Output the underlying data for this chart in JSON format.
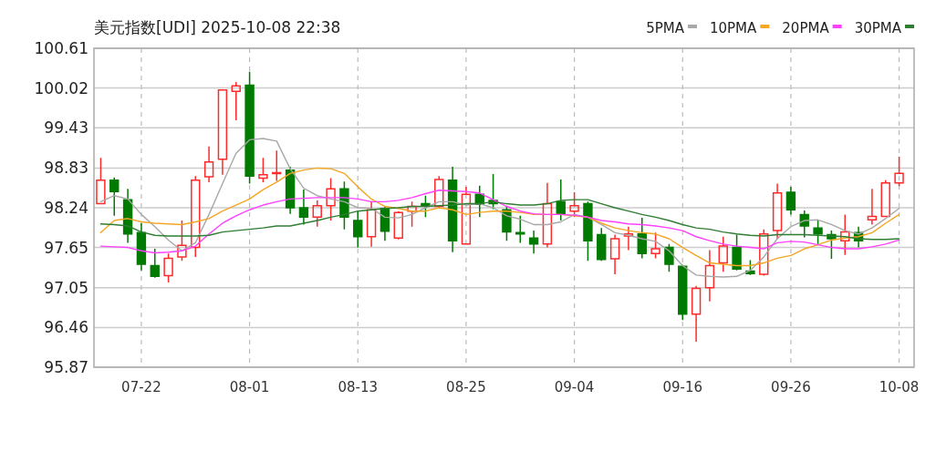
{
  "chart_data": {
    "type": "candlestick",
    "title": "美元指数[UDI] 2025-10-08 22:38",
    "categories": [
      null,
      null,
      null,
      "07-22",
      null,
      null,
      null,
      null,
      null,
      null,
      null,
      "08-01",
      null,
      null,
      null,
      null,
      null,
      null,
      null,
      "08-13",
      null,
      null,
      null,
      null,
      null,
      null,
      null,
      "08-25",
      null,
      null,
      null,
      null,
      null,
      null,
      null,
      "09-04",
      null,
      null,
      null,
      null,
      null,
      null,
      null,
      "09-16",
      null,
      null,
      null,
      null,
      null,
      null,
      null,
      "09-26",
      null,
      null,
      null,
      null,
      null,
      null,
      null,
      "10-08"
    ],
    "ohlc": [
      [
        98.3,
        98.98,
        98.29,
        98.65
      ],
      [
        98.65,
        98.69,
        98.12,
        98.48
      ],
      [
        98.36,
        98.52,
        97.72,
        97.85
      ],
      [
        97.87,
        98.01,
        97.31,
        97.4
      ],
      [
        97.38,
        97.63,
        97.2,
        97.22
      ],
      [
        97.23,
        97.56,
        97.13,
        97.49
      ],
      [
        97.51,
        98.05,
        97.45,
        97.68
      ],
      [
        97.65,
        98.71,
        97.51,
        98.65
      ],
      [
        98.7,
        99.15,
        98.62,
        98.92
      ],
      [
        98.96,
        99.99,
        98.73,
        99.99
      ],
      [
        99.97,
        100.11,
        99.54,
        100.05
      ],
      [
        100.06,
        100.26,
        98.6,
        98.71
      ],
      [
        98.68,
        98.98,
        98.62,
        98.73
      ],
      [
        98.75,
        99.09,
        98.64,
        98.76
      ],
      [
        98.8,
        98.85,
        98.15,
        98.24
      ],
      [
        98.24,
        98.51,
        97.99,
        98.1
      ],
      [
        98.1,
        98.35,
        97.96,
        98.27
      ],
      [
        98.27,
        98.68,
        98.05,
        98.52
      ],
      [
        98.52,
        98.63,
        97.92,
        98.1
      ],
      [
        98.05,
        98.19,
        97.65,
        97.81
      ],
      [
        97.81,
        98.33,
        97.66,
        98.21
      ],
      [
        98.23,
        98.26,
        97.75,
        97.89
      ],
      [
        97.79,
        98.19,
        97.77,
        98.17
      ],
      [
        98.19,
        98.33,
        97.96,
        98.26
      ],
      [
        98.3,
        98.42,
        98.1,
        98.27
      ],
      [
        98.26,
        98.71,
        98.24,
        98.66
      ],
      [
        98.65,
        98.85,
        97.58,
        97.75
      ],
      [
        97.7,
        98.55,
        97.69,
        98.44
      ],
      [
        98.44,
        98.57,
        98.1,
        98.29
      ],
      [
        98.35,
        98.74,
        98.22,
        98.3
      ],
      [
        98.21,
        98.26,
        97.75,
        97.88
      ],
      [
        97.87,
        98.12,
        97.72,
        97.85
      ],
      [
        97.79,
        97.9,
        97.56,
        97.7
      ],
      [
        97.7,
        98.61,
        97.65,
        98.3
      ],
      [
        98.33,
        98.66,
        98.05,
        98.15
      ],
      [
        98.19,
        98.47,
        98.1,
        98.27
      ],
      [
        98.3,
        98.33,
        97.45,
        97.75
      ],
      [
        97.84,
        97.94,
        97.45,
        97.47
      ],
      [
        97.48,
        97.84,
        97.25,
        97.78
      ],
      [
        97.82,
        97.96,
        97.61,
        97.85
      ],
      [
        97.85,
        98.09,
        97.49,
        97.56
      ],
      [
        97.56,
        97.87,
        97.49,
        97.63
      ],
      [
        97.65,
        97.7,
        97.29,
        97.4
      ],
      [
        97.37,
        97.39,
        96.57,
        96.66
      ],
      [
        96.66,
        97.08,
        96.25,
        97.04
      ],
      [
        97.05,
        97.61,
        96.85,
        97.38
      ],
      [
        97.42,
        97.81,
        97.29,
        97.67
      ],
      [
        97.65,
        97.84,
        97.31,
        97.33
      ],
      [
        97.3,
        97.46,
        97.24,
        97.26
      ],
      [
        97.25,
        97.92,
        97.23,
        97.85
      ],
      [
        97.9,
        98.6,
        97.78,
        98.46
      ],
      [
        98.47,
        98.55,
        98.14,
        98.21
      ],
      [
        98.14,
        98.2,
        97.8,
        97.97
      ],
      [
        97.94,
        98.05,
        97.7,
        97.85
      ],
      [
        97.84,
        97.9,
        97.48,
        97.78
      ],
      [
        97.75,
        98.14,
        97.54,
        97.88
      ],
      [
        97.87,
        97.96,
        97.65,
        97.75
      ],
      [
        98.06,
        98.52,
        97.99,
        98.11
      ],
      [
        98.11,
        98.65,
        98.1,
        98.61
      ],
      [
        98.61,
        99.0,
        98.56,
        98.75
      ]
    ],
    "series": [
      {
        "type": "line",
        "name": "5PMA",
        "color": "#a8a8a8",
        "values": [
          98.33,
          98.42,
          98.37,
          98.14,
          97.96,
          97.76,
          97.6,
          97.72,
          98.14,
          98.6,
          99.05,
          99.25,
          99.27,
          99.23,
          98.82,
          98.53,
          98.42,
          98.37,
          98.33,
          98.24,
          98.23,
          98.1,
          98.09,
          98.14,
          98.24,
          98.33,
          98.33,
          98.28,
          98.3,
          98.24,
          98.12,
          98.07,
          97.99,
          97.99,
          98.03,
          98.14,
          98.1,
          97.99,
          97.87,
          97.83,
          97.78,
          97.74,
          97.6,
          97.38,
          97.24,
          97.22,
          97.21,
          97.22,
          97.31,
          97.51,
          97.78,
          97.96,
          98.05,
          98.06,
          97.99,
          97.9,
          97.85,
          97.94,
          98.08,
          98.23
        ]
      },
      {
        "type": "line",
        "name": "10PMA",
        "color": "#f5a623",
        "values": [
          97.87,
          98.05,
          98.08,
          98.03,
          98.01,
          98.0,
          97.99,
          98.03,
          98.08,
          98.19,
          98.28,
          98.37,
          98.51,
          98.62,
          98.75,
          98.8,
          98.83,
          98.82,
          98.75,
          98.55,
          98.37,
          98.26,
          98.23,
          98.19,
          98.19,
          98.24,
          98.21,
          98.14,
          98.17,
          98.19,
          98.19,
          98.17,
          98.14,
          98.14,
          98.14,
          98.12,
          98.1,
          98.01,
          97.94,
          97.9,
          97.87,
          97.85,
          97.78,
          97.65,
          97.53,
          97.42,
          97.4,
          97.38,
          97.38,
          97.42,
          97.49,
          97.53,
          97.63,
          97.69,
          97.76,
          97.79,
          97.81,
          97.87,
          98.01,
          98.14
        ]
      },
      {
        "type": "line",
        "name": "20PMA",
        "color": "#ff40ff",
        "values": [
          97.67,
          97.66,
          97.65,
          97.6,
          97.57,
          97.58,
          97.6,
          97.67,
          97.85,
          98.01,
          98.12,
          98.21,
          98.28,
          98.33,
          98.37,
          98.38,
          98.39,
          98.39,
          98.39,
          98.37,
          98.33,
          98.33,
          98.35,
          98.39,
          98.45,
          98.5,
          98.49,
          98.48,
          98.46,
          98.36,
          98.26,
          98.19,
          98.15,
          98.14,
          98.14,
          98.13,
          98.1,
          98.05,
          98.03,
          98.0,
          97.99,
          97.97,
          97.94,
          97.9,
          97.81,
          97.75,
          97.7,
          97.67,
          97.65,
          97.63,
          97.72,
          97.74,
          97.73,
          97.69,
          97.65,
          97.63,
          97.63,
          97.66,
          97.7,
          97.76
        ]
      },
      {
        "type": "line",
        "name": "30PMA",
        "color": "#2e7d32",
        "values": [
          98.0,
          97.99,
          97.97,
          97.88,
          97.83,
          97.82,
          97.82,
          97.82,
          97.83,
          97.88,
          97.9,
          97.92,
          97.94,
          97.97,
          97.97,
          98.01,
          98.05,
          98.1,
          98.14,
          98.19,
          98.21,
          98.23,
          98.24,
          98.26,
          98.26,
          98.27,
          98.28,
          98.3,
          98.3,
          98.33,
          98.3,
          98.28,
          98.28,
          98.3,
          98.35,
          98.36,
          98.36,
          98.3,
          98.24,
          98.19,
          98.14,
          98.1,
          98.05,
          97.99,
          97.94,
          97.92,
          97.88,
          97.85,
          97.83,
          97.82,
          97.84,
          97.84,
          97.84,
          97.83,
          97.82,
          97.81,
          97.78,
          97.77,
          97.77,
          97.78
        ]
      }
    ],
    "ylim": [
      95.87,
      100.61
    ],
    "yticks": [
      95.87,
      96.46,
      97.05,
      97.65,
      98.24,
      98.83,
      99.43,
      100.02,
      100.61
    ],
    "grid": true,
    "legend": "top right"
  }
}
